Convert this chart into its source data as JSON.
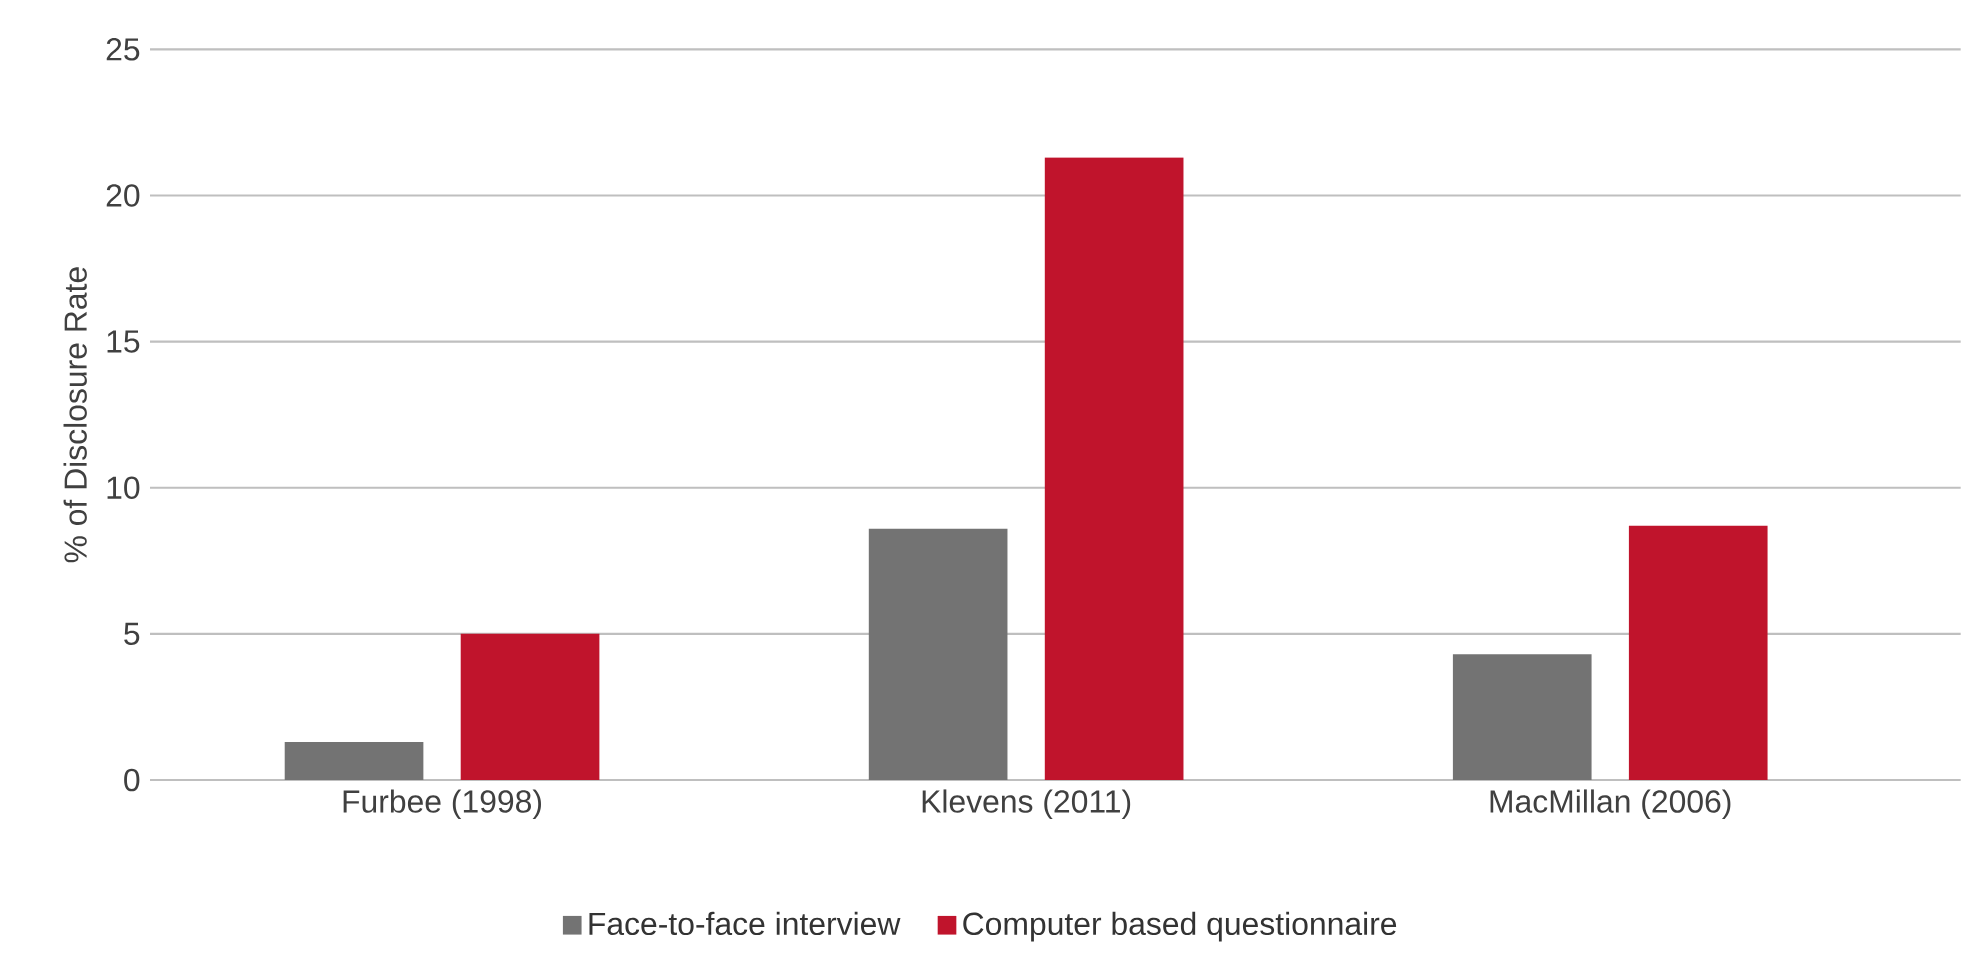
{
  "chart_data": {
    "type": "bar",
    "ylabel": "% of Disclosure Rate",
    "categories": [
      "Furbee (1998)",
      "Klevens (2011)",
      "MacMillan (2006)"
    ],
    "series": [
      {
        "name": "Face-to-face interview",
        "color": "#737373",
        "values": [
          1.3,
          8.6,
          4.3
        ]
      },
      {
        "name": "Computer based questionnaire",
        "color": "#c0142c",
        "values": [
          5.0,
          21.3,
          8.7
        ]
      }
    ],
    "ylim": [
      0,
      25
    ],
    "yticks": [
      0,
      5,
      10,
      15,
      20,
      25
    ],
    "grid": "y",
    "legend": "bottom"
  }
}
